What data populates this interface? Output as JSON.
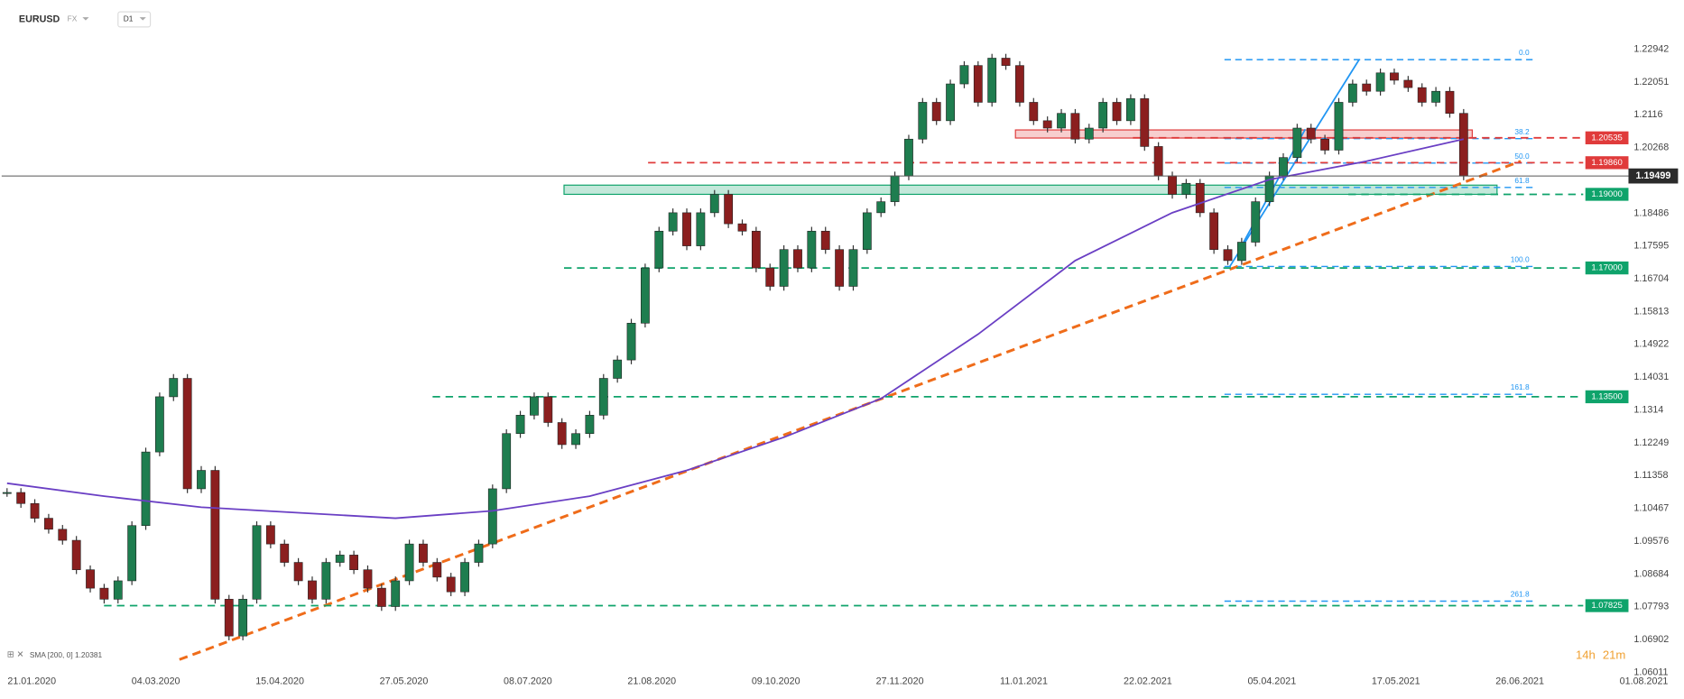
{
  "chart_data": {
    "type": "candlestick",
    "symbol": "EURUSD",
    "market": "FX",
    "interval": "D1",
    "indicator_label": "SMA [200, 0] 1.20381",
    "timer_hours": "14h",
    "timer_minutes": "21m",
    "xticks": [
      "21.01.2020",
      "04.03.2020",
      "15.04.2020",
      "27.05.2020",
      "08.07.2020",
      "21.08.2020",
      "09.10.2020",
      "27.11.2020",
      "11.01.2021",
      "22.02.2021",
      "05.04.2021",
      "17.05.2021",
      "26.06.2021",
      "01.08.2021"
    ],
    "ylim": [
      1.0585,
      1.2428
    ],
    "yticks": [
      1.22942,
      1.22051,
      1.2116,
      1.20268,
      1.18486,
      1.17595,
      1.16704,
      1.15813,
      1.14922,
      1.14031,
      1.1314,
      1.12249,
      1.11358,
      1.10467,
      1.09576,
      1.08684,
      1.07793,
      1.06902,
      1.06011
    ],
    "series": [
      {
        "name": "EURUSD",
        "up_color": "#1e7d4f",
        "down_color": "#8b1f1f",
        "values": [
          1.109,
          1.106,
          1.102,
          1.099,
          1.096,
          1.088,
          1.083,
          1.08,
          1.085,
          1.1,
          1.12,
          1.135,
          1.14,
          1.11,
          1.115,
          1.08,
          1.07,
          1.08,
          1.1,
          1.095,
          1.09,
          1.085,
          1.08,
          1.09,
          1.092,
          1.088,
          1.083,
          1.078,
          1.085,
          1.095,
          1.09,
          1.086,
          1.082,
          1.09,
          1.095,
          1.11,
          1.125,
          1.13,
          1.135,
          1.128,
          1.122,
          1.125,
          1.13,
          1.14,
          1.145,
          1.155,
          1.17,
          1.18,
          1.185,
          1.176,
          1.185,
          1.19,
          1.182,
          1.18,
          1.17,
          1.165,
          1.175,
          1.17,
          1.18,
          1.175,
          1.165,
          1.175,
          1.185,
          1.188,
          1.195,
          1.205,
          1.215,
          1.21,
          1.22,
          1.225,
          1.215,
          1.227,
          1.225,
          1.215,
          1.21,
          1.208,
          1.212,
          1.205,
          1.208,
          1.215,
          1.21,
          1.216,
          1.203,
          1.195,
          1.19,
          1.193,
          1.185,
          1.175,
          1.172,
          1.177,
          1.188,
          1.195,
          1.2,
          1.208,
          1.205,
          1.202,
          1.215,
          1.22,
          1.218,
          1.223,
          1.221,
          1.219,
          1.215,
          1.218,
          1.212,
          1.195
        ]
      },
      {
        "name": "SMA",
        "color": "#6a3fc4",
        "values": [
          1.1115,
          1.108,
          1.105,
          1.1035,
          1.102,
          1.104,
          1.108,
          1.115,
          1.124,
          1.1345,
          1.152,
          1.172,
          1.185,
          1.194,
          1.199,
          1.205
        ]
      }
    ],
    "levels": [
      {
        "value": 1.20535,
        "color": "#e03b3b"
      },
      {
        "value": 1.1986,
        "label": "1.19860",
        "color": "#e03b3b"
      },
      {
        "value": 1.19,
        "label": "1.19000",
        "color": "#0fa36b"
      },
      {
        "value": 1.17,
        "label": "1.17000",
        "color": "#0fa36b"
      },
      {
        "value": 1.135,
        "label": "1.13500",
        "color": "#0fa36b"
      },
      {
        "value": 1.07825,
        "color": "#0fa36b"
      }
    ],
    "current_price": 1.19499,
    "fibonacci": {
      "high": 1.2266,
      "low": 1.1704,
      "color": "#2196f3",
      "levels": [
        {
          "value": 0,
          "label": "0.0"
        },
        38.2,
        {
          "value": 50,
          "label": "50.0"
        },
        61.8,
        {
          "value": 100,
          "label": "100.0"
        },
        161.8,
        261.8
      ]
    },
    "trendline": {
      "start": 1.0636,
      "end": 1.199,
      "color": "#ef6c1a"
    },
    "zones": [
      {
        "top": 1.2075,
        "bottom": 1.2053,
        "color": "#e03b3b"
      },
      {
        "top": 1.1925,
        "bottom": 1.19,
        "color": "#0fa36b"
      }
    ]
  }
}
